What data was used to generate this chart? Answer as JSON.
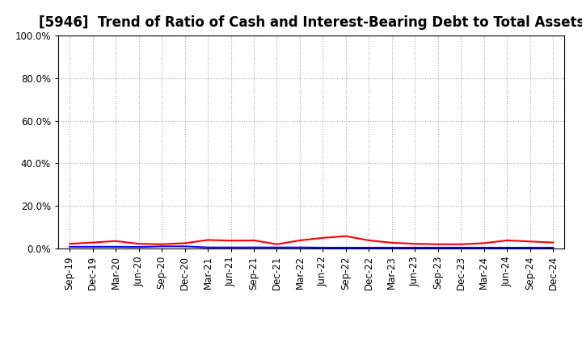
{
  "title": "[5946]  Trend of Ratio of Cash and Interest-Bearing Debt to Total Assets",
  "x_labels": [
    "Sep-19",
    "Dec-19",
    "Mar-20",
    "Jun-20",
    "Sep-20",
    "Dec-20",
    "Mar-21",
    "Jun-21",
    "Sep-21",
    "Dec-21",
    "Mar-22",
    "Jun-22",
    "Sep-22",
    "Dec-22",
    "Mar-23",
    "Jun-23",
    "Sep-23",
    "Dec-23",
    "Mar-24",
    "Jun-24",
    "Sep-24",
    "Dec-24"
  ],
  "cash": [
    0.022,
    0.028,
    0.035,
    0.022,
    0.02,
    0.025,
    0.04,
    0.037,
    0.038,
    0.02,
    0.038,
    0.05,
    0.058,
    0.038,
    0.027,
    0.022,
    0.02,
    0.02,
    0.025,
    0.038,
    0.033,
    0.028
  ],
  "interest_bearing_debt": [
    0.008,
    0.008,
    0.008,
    0.007,
    0.01,
    0.01,
    0.005,
    0.005,
    0.005,
    0.005,
    0.005,
    0.004,
    0.004,
    0.004,
    0.004,
    0.004,
    0.004,
    0.004,
    0.004,
    0.004,
    0.004,
    0.004
  ],
  "ylim": [
    0.0,
    1.0
  ],
  "yticks": [
    0.0,
    0.2,
    0.4,
    0.6,
    0.8,
    1.0
  ],
  "cash_color": "#ff0000",
  "debt_color": "#0000ff",
  "background_color": "#ffffff",
  "grid_color": "#aaaaaa",
  "title_fontsize": 12,
  "tick_fontsize": 8.5,
  "legend_fontsize": 9
}
